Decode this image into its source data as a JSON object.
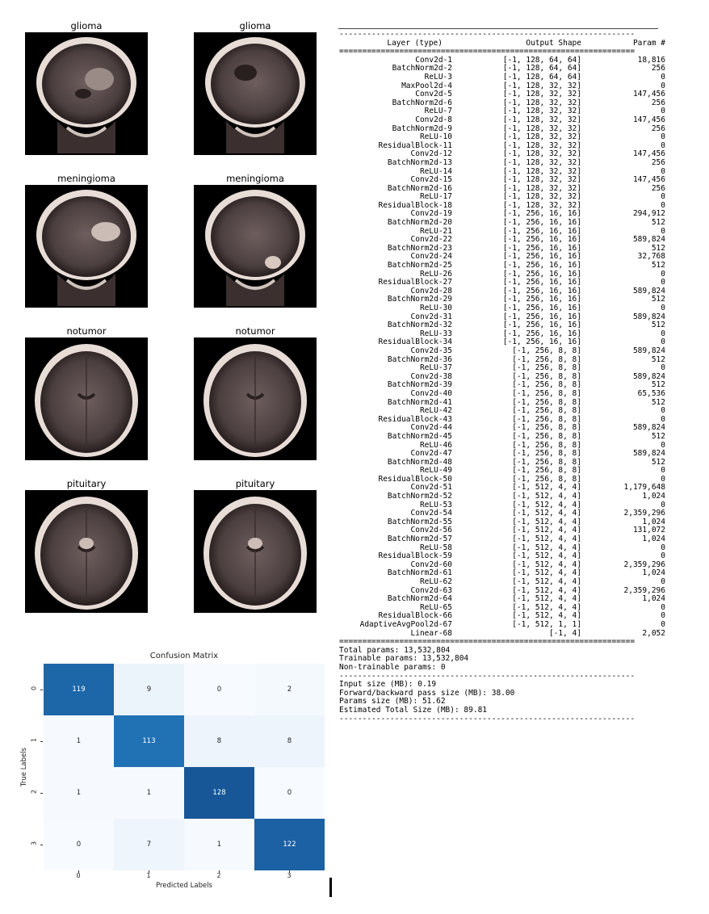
{
  "mri_panel": {
    "images": [
      {
        "label": "glioma"
      },
      {
        "label": "glioma"
      },
      {
        "label": "meningioma"
      },
      {
        "label": "meningioma"
      },
      {
        "label": "notumor"
      },
      {
        "label": "notumor"
      },
      {
        "label": "pituitary"
      },
      {
        "label": "pituitary"
      }
    ]
  },
  "chart_data": {
    "type": "heatmap",
    "title": "Confusion Matrix",
    "xlabel": "Predicted Labels",
    "ylabel": "True Labels",
    "x_categories": [
      "0",
      "1",
      "2",
      "3"
    ],
    "y_categories": [
      "0",
      "1",
      "2",
      "3"
    ],
    "values": [
      [
        119,
        9,
        0,
        2
      ],
      [
        1,
        113,
        8,
        8
      ],
      [
        1,
        1,
        128,
        0
      ],
      [
        0,
        7,
        1,
        122
      ]
    ],
    "colormap": "Blues",
    "grid": false
  },
  "summary": {
    "dash_line": "----------------------------------------------------------------",
    "equals_line": "================================================================",
    "header": {
      "name": "Layer (type)",
      "shape": "Output Shape",
      "param": "Param #"
    },
    "layers": [
      {
        "name": "Conv2d-1",
        "shape": "[-1, 128, 64, 64]",
        "param": "18,816"
      },
      {
        "name": "BatchNorm2d-2",
        "shape": "[-1, 128, 64, 64]",
        "param": "256"
      },
      {
        "name": "ReLU-3",
        "shape": "[-1, 128, 64, 64]",
        "param": "0"
      },
      {
        "name": "MaxPool2d-4",
        "shape": "[-1, 128, 32, 32]",
        "param": "0"
      },
      {
        "name": "Conv2d-5",
        "shape": "[-1, 128, 32, 32]",
        "param": "147,456"
      },
      {
        "name": "BatchNorm2d-6",
        "shape": "[-1, 128, 32, 32]",
        "param": "256"
      },
      {
        "name": "ReLU-7",
        "shape": "[-1, 128, 32, 32]",
        "param": "0"
      },
      {
        "name": "Conv2d-8",
        "shape": "[-1, 128, 32, 32]",
        "param": "147,456"
      },
      {
        "name": "BatchNorm2d-9",
        "shape": "[-1, 128, 32, 32]",
        "param": "256"
      },
      {
        "name": "ReLU-10",
        "shape": "[-1, 128, 32, 32]",
        "param": "0"
      },
      {
        "name": "ResidualBlock-11",
        "shape": "[-1, 128, 32, 32]",
        "param": "0"
      },
      {
        "name": "Conv2d-12",
        "shape": "[-1, 128, 32, 32]",
        "param": "147,456"
      },
      {
        "name": "BatchNorm2d-13",
        "shape": "[-1, 128, 32, 32]",
        "param": "256"
      },
      {
        "name": "ReLU-14",
        "shape": "[-1, 128, 32, 32]",
        "param": "0"
      },
      {
        "name": "Conv2d-15",
        "shape": "[-1, 128, 32, 32]",
        "param": "147,456"
      },
      {
        "name": "BatchNorm2d-16",
        "shape": "[-1, 128, 32, 32]",
        "param": "256"
      },
      {
        "name": "ReLU-17",
        "shape": "[-1, 128, 32, 32]",
        "param": "0"
      },
      {
        "name": "ResidualBlock-18",
        "shape": "[-1, 128, 32, 32]",
        "param": "0"
      },
      {
        "name": "Conv2d-19",
        "shape": "[-1, 256, 16, 16]",
        "param": "294,912"
      },
      {
        "name": "BatchNorm2d-20",
        "shape": "[-1, 256, 16, 16]",
        "param": "512"
      },
      {
        "name": "ReLU-21",
        "shape": "[-1, 256, 16, 16]",
        "param": "0"
      },
      {
        "name": "Conv2d-22",
        "shape": "[-1, 256, 16, 16]",
        "param": "589,824"
      },
      {
        "name": "BatchNorm2d-23",
        "shape": "[-1, 256, 16, 16]",
        "param": "512"
      },
      {
        "name": "Conv2d-24",
        "shape": "[-1, 256, 16, 16]",
        "param": "32,768"
      },
      {
        "name": "BatchNorm2d-25",
        "shape": "[-1, 256, 16, 16]",
        "param": "512"
      },
      {
        "name": "ReLU-26",
        "shape": "[-1, 256, 16, 16]",
        "param": "0"
      },
      {
        "name": "ResidualBlock-27",
        "shape": "[-1, 256, 16, 16]",
        "param": "0"
      },
      {
        "name": "Conv2d-28",
        "shape": "[-1, 256, 16, 16]",
        "param": "589,824"
      },
      {
        "name": "BatchNorm2d-29",
        "shape": "[-1, 256, 16, 16]",
        "param": "512"
      },
      {
        "name": "ReLU-30",
        "shape": "[-1, 256, 16, 16]",
        "param": "0"
      },
      {
        "name": "Conv2d-31",
        "shape": "[-1, 256, 16, 16]",
        "param": "589,824"
      },
      {
        "name": "BatchNorm2d-32",
        "shape": "[-1, 256, 16, 16]",
        "param": "512"
      },
      {
        "name": "ReLU-33",
        "shape": "[-1, 256, 16, 16]",
        "param": "0"
      },
      {
        "name": "ResidualBlock-34",
        "shape": "[-1, 256, 16, 16]",
        "param": "0"
      },
      {
        "name": "Conv2d-35",
        "shape": "[-1, 256, 8, 8]",
        "param": "589,824"
      },
      {
        "name": "BatchNorm2d-36",
        "shape": "[-1, 256, 8, 8]",
        "param": "512"
      },
      {
        "name": "ReLU-37",
        "shape": "[-1, 256, 8, 8]",
        "param": "0"
      },
      {
        "name": "Conv2d-38",
        "shape": "[-1, 256, 8, 8]",
        "param": "589,824"
      },
      {
        "name": "BatchNorm2d-39",
        "shape": "[-1, 256, 8, 8]",
        "param": "512"
      },
      {
        "name": "Conv2d-40",
        "shape": "[-1, 256, 8, 8]",
        "param": "65,536"
      },
      {
        "name": "BatchNorm2d-41",
        "shape": "[-1, 256, 8, 8]",
        "param": "512"
      },
      {
        "name": "ReLU-42",
        "shape": "[-1, 256, 8, 8]",
        "param": "0"
      },
      {
        "name": "ResidualBlock-43",
        "shape": "[-1, 256, 8, 8]",
        "param": "0"
      },
      {
        "name": "Conv2d-44",
        "shape": "[-1, 256, 8, 8]",
        "param": "589,824"
      },
      {
        "name": "BatchNorm2d-45",
        "shape": "[-1, 256, 8, 8]",
        "param": "512"
      },
      {
        "name": "ReLU-46",
        "shape": "[-1, 256, 8, 8]",
        "param": "0"
      },
      {
        "name": "Conv2d-47",
        "shape": "[-1, 256, 8, 8]",
        "param": "589,824"
      },
      {
        "name": "BatchNorm2d-48",
        "shape": "[-1, 256, 8, 8]",
        "param": "512"
      },
      {
        "name": "ReLU-49",
        "shape": "[-1, 256, 8, 8]",
        "param": "0"
      },
      {
        "name": "ResidualBlock-50",
        "shape": "[-1, 256, 8, 8]",
        "param": "0"
      },
      {
        "name": "Conv2d-51",
        "shape": "[-1, 512, 4, 4]",
        "param": "1,179,648"
      },
      {
        "name": "BatchNorm2d-52",
        "shape": "[-1, 512, 4, 4]",
        "param": "1,024"
      },
      {
        "name": "ReLU-53",
        "shape": "[-1, 512, 4, 4]",
        "param": "0"
      },
      {
        "name": "Conv2d-54",
        "shape": "[-1, 512, 4, 4]",
        "param": "2,359,296"
      },
      {
        "name": "BatchNorm2d-55",
        "shape": "[-1, 512, 4, 4]",
        "param": "1,024"
      },
      {
        "name": "Conv2d-56",
        "shape": "[-1, 512, 4, 4]",
        "param": "131,072"
      },
      {
        "name": "BatchNorm2d-57",
        "shape": "[-1, 512, 4, 4]",
        "param": "1,024"
      },
      {
        "name": "ReLU-58",
        "shape": "[-1, 512, 4, 4]",
        "param": "0"
      },
      {
        "name": "ResidualBlock-59",
        "shape": "[-1, 512, 4, 4]",
        "param": "0"
      },
      {
        "name": "Conv2d-60",
        "shape": "[-1, 512, 4, 4]",
        "param": "2,359,296"
      },
      {
        "name": "BatchNorm2d-61",
        "shape": "[-1, 512, 4, 4]",
        "param": "1,024"
      },
      {
        "name": "ReLU-62",
        "shape": "[-1, 512, 4, 4]",
        "param": "0"
      },
      {
        "name": "Conv2d-63",
        "shape": "[-1, 512, 4, 4]",
        "param": "2,359,296"
      },
      {
        "name": "BatchNorm2d-64",
        "shape": "[-1, 512, 4, 4]",
        "param": "1,024"
      },
      {
        "name": "ReLU-65",
        "shape": "[-1, 512, 4, 4]",
        "param": "0"
      },
      {
        "name": "ResidualBlock-66",
        "shape": "[-1, 512, 4, 4]",
        "param": "0"
      },
      {
        "name": "AdaptiveAvgPool2d-67",
        "shape": "[-1, 512, 1, 1]",
        "param": "0"
      },
      {
        "name": "Linear-68",
        "shape": "[-1, 4]",
        "param": "2,052"
      }
    ],
    "totals": [
      "Total params: 13,532,804",
      "Trainable params: 13,532,804",
      "Non-trainable params: 0"
    ],
    "sizes": [
      "Input size (MB): 0.19",
      "Forward/backward pass size (MB): 38.00",
      "Params size (MB): 51.62",
      "Estimated Total Size (MB): 89.81"
    ]
  }
}
